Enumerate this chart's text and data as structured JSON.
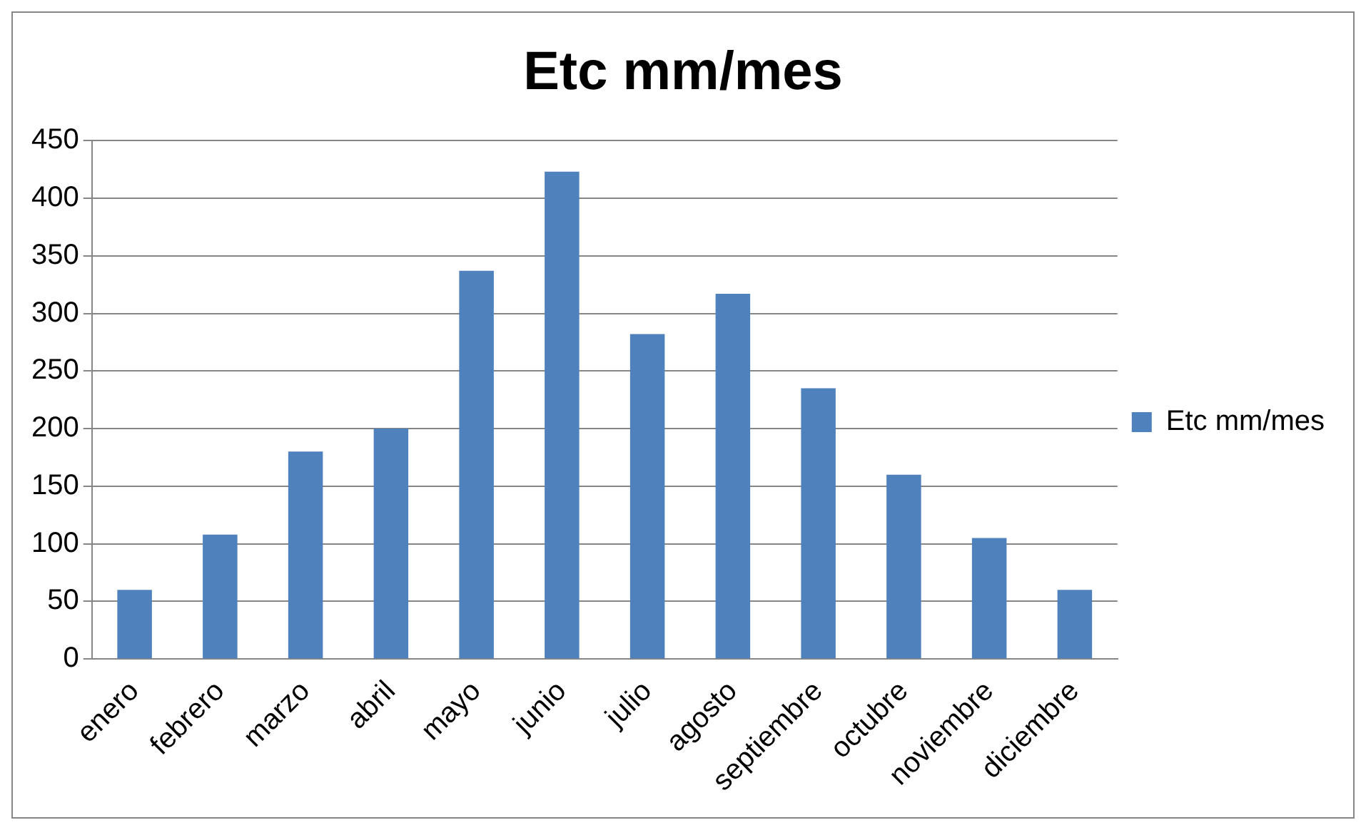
{
  "chart_data": {
    "type": "bar",
    "title": "Etc mm/mes",
    "categories": [
      "enero",
      "febrero",
      "marzo",
      "abril",
      "mayo",
      "junio",
      "julio",
      "agosto",
      "septiembre",
      "octubre",
      "noviembre",
      "diciembre"
    ],
    "series": [
      {
        "name": "Etc mm/mes",
        "color": "#4f81bd",
        "values": [
          60,
          108,
          180,
          200,
          337,
          423,
          282,
          317,
          235,
          160,
          105,
          60
        ]
      }
    ],
    "ylim": [
      0,
      450
    ],
    "yticks": [
      0,
      50,
      100,
      150,
      200,
      250,
      300,
      350,
      400,
      450
    ],
    "grid": "y",
    "legend": "right"
  }
}
